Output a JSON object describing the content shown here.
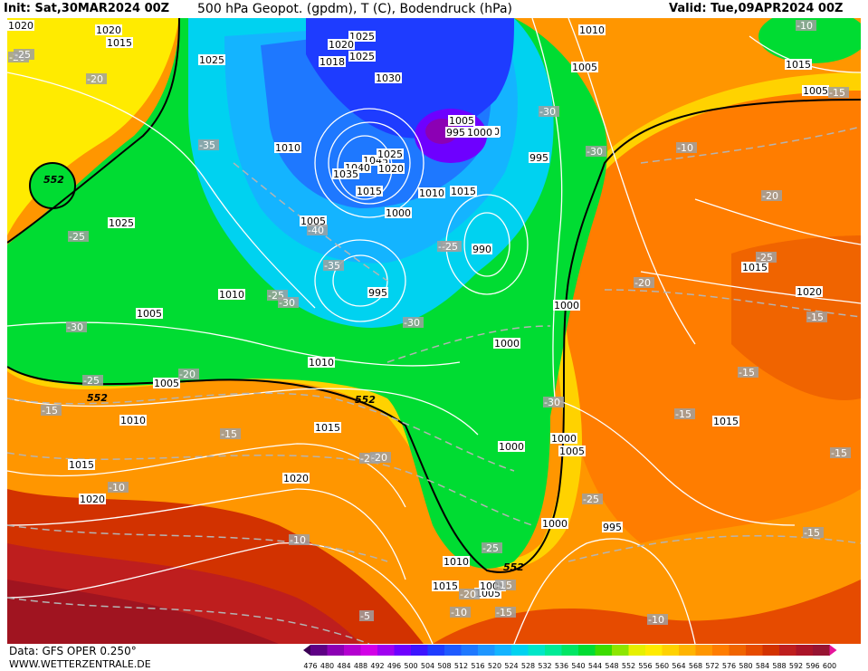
{
  "header": {
    "init": "Init: Sat,30MAR2024 00Z",
    "title": "500 hPa Geopot. (gpdm), T (C), Bodendruck (hPa)",
    "valid": "Valid: Tue,09APR2024 00Z"
  },
  "footer": {
    "data_source": "Data: GFS OPER 0.250°",
    "website": "WWW.WETTERZENTRALE.DE"
  },
  "colorbar": {
    "values": [
      "476",
      "480",
      "484",
      "488",
      "492",
      "496",
      "500",
      "504",
      "508",
      "512",
      "516",
      "520",
      "524",
      "528",
      "532",
      "536",
      "540",
      "544",
      "548",
      "552",
      "556",
      "560",
      "564",
      "568",
      "572",
      "576",
      "580",
      "584",
      "588",
      "592",
      "596",
      "600"
    ],
    "colors": [
      "#3b0054",
      "#5e0085",
      "#8c00b4",
      "#b400cf",
      "#d200e6",
      "#a000f0",
      "#6e00ff",
      "#3c14ff",
      "#1e3cff",
      "#1e5aff",
      "#1e78ff",
      "#1e96ff",
      "#14b4ff",
      "#00d2f0",
      "#00e6c8",
      "#00eb96",
      "#00e664",
      "#00dc32",
      "#3cdc00",
      "#8ce600",
      "#e6f000",
      "#ffeb00",
      "#ffd200",
      "#ffb400",
      "#ff9600",
      "#ff7d00",
      "#f06400",
      "#e64b00",
      "#d23200",
      "#be1e1e",
      "#aa1428",
      "#961432",
      "#e6149b"
    ]
  },
  "map": {
    "background_colors": {
      "yellow": "#ffeb00",
      "orange": "#ff9600",
      "dark_orange": "#f06400",
      "red": "#c81e1e",
      "dark_red": "#a01420",
      "green": "#00dc32",
      "light_green": "#3cdc00",
      "cyan": "#00d2f0",
      "blue": "#1e78ff",
      "dark_blue": "#1e3cff",
      "purple": "#6e00ff"
    },
    "geopotential_labels": [
      "552",
      "552",
      "552",
      "552"
    ],
    "isobar_labels": [
      "1020",
      "1025",
      "1025",
      "1020",
      "1018",
      "1025",
      "1030",
      "1010",
      "1010",
      "1010",
      "1005",
      "1005",
      "1045",
      "1040",
      "1035",
      "1025",
      "1020",
      "1015",
      "1010",
      "1005",
      "1000",
      "995",
      "1000",
      "990",
      "995",
      "1015",
      "1020",
      "1010",
      "1005",
      "1010",
      "1005",
      "1010",
      "1000",
      "1015",
      "1020",
      "1015",
      "1000",
      "1000",
      "1005",
      "1000",
      "1015",
      "1020",
      "1020",
      "1025",
      "1015",
      "995",
      "1000",
      "1005",
      "1010",
      "1005",
      "1015",
      "1015",
      "1020",
      "1005",
      "1005",
      "1000",
      "995",
      "1010",
      "1015"
    ],
    "temperature_labels": [
      "-20",
      "-20",
      "-35",
      "-25",
      "-40",
      "-35",
      "-25",
      "-30",
      "-30",
      "-25",
      "-20",
      "-15",
      "-15",
      "-20",
      "-10",
      "-10",
      "-5",
      "-25",
      "-20",
      "-35",
      "-30",
      "-30",
      "-30",
      "-25",
      "-20",
      "-25",
      "-20",
      "-15",
      "-15",
      "-15",
      "-15",
      "-15",
      "-10",
      "-15",
      "-20",
      "-15",
      "-10",
      "-10",
      "-15",
      "-10",
      "-25",
      "-30",
      "-25"
    ]
  }
}
